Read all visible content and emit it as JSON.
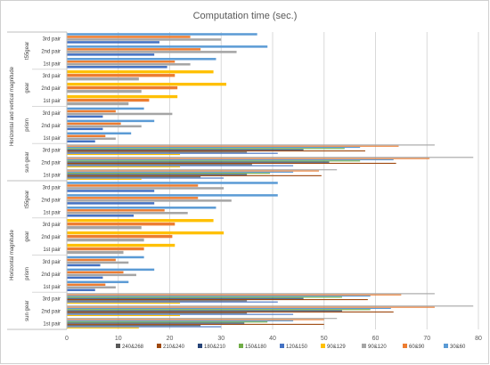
{
  "chart_data": {
    "type": "bar",
    "orientation": "horizontal",
    "title": "Computation time (sec.)",
    "xlabel": "",
    "ylabel": "",
    "xlim": [
      0,
      80
    ],
    "x_ticks": [
      "0",
      "10",
      "20",
      "30",
      "40",
      "50",
      "60",
      "70",
      "80"
    ],
    "grid": "vertical gridlines",
    "legend_position": "bottom",
    "groups": [
      {
        "name": "Horizontal and vertical magnitude",
        "subgroups": [
          {
            "name": "t55gear",
            "pairs": [
              {
                "label": "3rd pair",
                "values": [
                  {
                    "s": "30&60",
                    "v": 37.0
                  },
                  {
                    "s": "60&90",
                    "v": 24.0
                  },
                  {
                    "s": "90&120",
                    "v": 30.0
                  },
                  {
                    "s": "120&150",
                    "v": 18.0
                  }
                ]
              },
              {
                "label": "2nd pair",
                "values": [
                  {
                    "s": "30&60",
                    "v": 39.0
                  },
                  {
                    "s": "60&90",
                    "v": 26.0
                  },
                  {
                    "s": "90&120",
                    "v": 33.0
                  },
                  {
                    "s": "120&150",
                    "v": 17.0
                  }
                ]
              },
              {
                "label": "1st pair",
                "values": [
                  {
                    "s": "30&60",
                    "v": 29.0
                  },
                  {
                    "s": "60&90",
                    "v": 21.0
                  },
                  {
                    "s": "90&120",
                    "v": 24.0
                  },
                  {
                    "s": "120&150",
                    "v": 19.5
                  }
                ]
              }
            ]
          },
          {
            "name": "gear",
            "pairs": [
              {
                "label": "3rd pair",
                "values": [
                  {
                    "s": "90&129",
                    "v": 28.5
                  },
                  {
                    "s": "60&90",
                    "v": 21.0
                  },
                  {
                    "s": "90&120",
                    "v": 14.0
                  }
                ]
              },
              {
                "label": "2nd pair",
                "values": [
                  {
                    "s": "90&129",
                    "v": 31.0
                  },
                  {
                    "s": "60&90",
                    "v": 21.5
                  },
                  {
                    "s": "90&120",
                    "v": 14.5
                  }
                ]
              },
              {
                "label": "1st pair",
                "values": [
                  {
                    "s": "90&129",
                    "v": 21.5
                  },
                  {
                    "s": "60&90",
                    "v": 16.0
                  },
                  {
                    "s": "90&120",
                    "v": 12.0
                  }
                ]
              }
            ]
          },
          {
            "name": "prism",
            "pairs": [
              {
                "label": "3rd pair",
                "values": [
                  {
                    "s": "30&60",
                    "v": 15.0
                  },
                  {
                    "s": "60&90",
                    "v": 9.5
                  },
                  {
                    "s": "90&120",
                    "v": 20.5
                  },
                  {
                    "s": "120&150",
                    "v": 7.0
                  }
                ]
              },
              {
                "label": "2nd pair",
                "values": [
                  {
                    "s": "30&60",
                    "v": 17.0
                  },
                  {
                    "s": "60&90",
                    "v": 10.5
                  },
                  {
                    "s": "90&120",
                    "v": 14.5
                  },
                  {
                    "s": "120&150",
                    "v": 7.0
                  }
                ]
              },
              {
                "label": "1st pair",
                "values": [
                  {
                    "s": "30&60",
                    "v": 12.5
                  },
                  {
                    "s": "60&90",
                    "v": 7.5
                  },
                  {
                    "s": "90&120",
                    "v": 9.5
                  },
                  {
                    "s": "120&150",
                    "v": 5.5
                  }
                ]
              }
            ]
          },
          {
            "name": "sun gear",
            "pairs": [
              {
                "label": "3rd pair",
                "values": [
                  {
                    "s": "90&120",
                    "v": 71.5
                  },
                  {
                    "s": "60&90",
                    "v": 64.5
                  },
                  {
                    "s": "30&60",
                    "v": 57.0
                  },
                  {
                    "s": "150&180",
                    "v": 54.0
                  },
                  {
                    "s": "180&210",
                    "v": 46.0
                  },
                  {
                    "s": "210&240",
                    "v": 58.0
                  },
                  {
                    "s": "240&268",
                    "v": 35.0
                  },
                  {
                    "s": "120&150",
                    "v": 41.0
                  },
                  {
                    "s": "90&129",
                    "v": 22.0
                  }
                ]
              },
              {
                "label": "2nd pair",
                "values": [
                  {
                    "s": "90&120",
                    "v": 79.0
                  },
                  {
                    "s": "60&90",
                    "v": 70.5
                  },
                  {
                    "s": "30&60",
                    "v": 63.5
                  },
                  {
                    "s": "150&180",
                    "v": 57.0
                  },
                  {
                    "s": "180&210",
                    "v": 51.0
                  },
                  {
                    "s": "210&240",
                    "v": 64.0
                  },
                  {
                    "s": "240&268",
                    "v": 36.0
                  },
                  {
                    "s": "120&150",
                    "v": 44.0
                  },
                  {
                    "s": "90&129",
                    "v": 22.0
                  }
                ]
              },
              {
                "label": "1st pair",
                "values": [
                  {
                    "s": "90&120",
                    "v": 52.5
                  },
                  {
                    "s": "60&90",
                    "v": 49.0
                  },
                  {
                    "s": "30&60",
                    "v": 44.0
                  },
                  {
                    "s": "150&180",
                    "v": 39.5
                  },
                  {
                    "s": "180&210",
                    "v": 35.0
                  },
                  {
                    "s": "210&240",
                    "v": 49.5
                  },
                  {
                    "s": "240&268",
                    "v": 26.0
                  },
                  {
                    "s": "120&150",
                    "v": 30.5
                  },
                  {
                    "s": "90&129",
                    "v": 14.5
                  }
                ]
              }
            ]
          }
        ]
      },
      {
        "name": "Horizontal magnitude",
        "subgroups": [
          {
            "name": "t55gear",
            "pairs": [
              {
                "label": "3rd pair",
                "values": [
                  {
                    "s": "30&60",
                    "v": 41.0
                  },
                  {
                    "s": "60&90",
                    "v": 25.5
                  },
                  {
                    "s": "90&120",
                    "v": 30.5
                  },
                  {
                    "s": "120&150",
                    "v": 17.0
                  }
                ]
              },
              {
                "label": "2nd pair",
                "values": [
                  {
                    "s": "30&60",
                    "v": 41.0
                  },
                  {
                    "s": "60&90",
                    "v": 25.5
                  },
                  {
                    "s": "90&120",
                    "v": 32.0
                  },
                  {
                    "s": "120&150",
                    "v": 17.0
                  }
                ]
              },
              {
                "label": "1st pair",
                "values": [
                  {
                    "s": "30&60",
                    "v": 29.0
                  },
                  {
                    "s": "60&90",
                    "v": 19.0
                  },
                  {
                    "s": "90&120",
                    "v": 23.5
                  },
                  {
                    "s": "120&150",
                    "v": 13.0
                  }
                ]
              }
            ]
          },
          {
            "name": "gear",
            "pairs": [
              {
                "label": "3rd pair",
                "values": [
                  {
                    "s": "90&129",
                    "v": 28.5
                  },
                  {
                    "s": "60&90",
                    "v": 21.0
                  },
                  {
                    "s": "90&120",
                    "v": 14.5
                  }
                ]
              },
              {
                "label": "2nd pair",
                "values": [
                  {
                    "s": "90&129",
                    "v": 30.5
                  },
                  {
                    "s": "60&90",
                    "v": 20.5
                  },
                  {
                    "s": "90&120",
                    "v": 15.0
                  }
                ]
              },
              {
                "label": "1st pair",
                "values": [
                  {
                    "s": "90&129",
                    "v": 21.0
                  },
                  {
                    "s": "60&90",
                    "v": 15.0
                  },
                  {
                    "s": "90&120",
                    "v": 11.0
                  }
                ]
              }
            ]
          },
          {
            "name": "prism",
            "pairs": [
              {
                "label": "3rd pair",
                "values": [
                  {
                    "s": "30&60",
                    "v": 15.0
                  },
                  {
                    "s": "60&90",
                    "v": 9.5
                  },
                  {
                    "s": "90&120",
                    "v": 12.0
                  },
                  {
                    "s": "120&150",
                    "v": 6.5
                  }
                ]
              },
              {
                "label": "2nd pair",
                "values": [
                  {
                    "s": "30&60",
                    "v": 17.0
                  },
                  {
                    "s": "60&90",
                    "v": 11.0
                  },
                  {
                    "s": "90&120",
                    "v": 13.5
                  },
                  {
                    "s": "120&150",
                    "v": 7.0
                  }
                ]
              },
              {
                "label": "1st pair",
                "values": [
                  {
                    "s": "30&60",
                    "v": 12.0
                  },
                  {
                    "s": "60&90",
                    "v": 7.5
                  },
                  {
                    "s": "90&120",
                    "v": 9.5
                  },
                  {
                    "s": "120&150",
                    "v": 5.5
                  }
                ]
              }
            ]
          },
          {
            "name": "sun gear",
            "pairs": [
              {
                "label": "3rd pair",
                "values": [
                  {
                    "s": "90&120",
                    "v": 71.5
                  },
                  {
                    "s": "60&90",
                    "v": 65.0
                  },
                  {
                    "s": "30&60",
                    "v": 59.0
                  },
                  {
                    "s": "150&180",
                    "v": 53.5
                  },
                  {
                    "s": "180&210",
                    "v": 46.0
                  },
                  {
                    "s": "210&240",
                    "v": 58.5
                  },
                  {
                    "s": "240&268",
                    "v": 35.0
                  },
                  {
                    "s": "120&150",
                    "v": 41.0
                  },
                  {
                    "s": "90&129",
                    "v": 22.0
                  }
                ]
              },
              {
                "label": "2nd pair",
                "values": [
                  {
                    "s": "90&120",
                    "v": 79.0
                  },
                  {
                    "s": "60&90",
                    "v": 71.5
                  },
                  {
                    "s": "30&60",
                    "v": 63.0
                  },
                  {
                    "s": "150&180",
                    "v": 59.0
                  },
                  {
                    "s": "180&210",
                    "v": 53.5
                  },
                  {
                    "s": "210&240",
                    "v": 63.5
                  },
                  {
                    "s": "240&268",
                    "v": 35.0
                  },
                  {
                    "s": "120&150",
                    "v": 44.0
                  },
                  {
                    "s": "90&129",
                    "v": 22.0
                  }
                ]
              },
              {
                "label": "1st pair",
                "values": [
                  {
                    "s": "90&120",
                    "v": 52.5
                  },
                  {
                    "s": "60&90",
                    "v": 50.0
                  },
                  {
                    "s": "30&60",
                    "v": 44.0
                  },
                  {
                    "s": "150&180",
                    "v": 39.0
                  },
                  {
                    "s": "180&210",
                    "v": 34.5
                  },
                  {
                    "s": "210&240",
                    "v": 50.0
                  },
                  {
                    "s": "240&268",
                    "v": 26.0
                  },
                  {
                    "s": "120&150",
                    "v": 30.0
                  },
                  {
                    "s": "90&129",
                    "v": 14.0
                  }
                ]
              }
            ]
          }
        ]
      }
    ],
    "legend": [
      {
        "name": "240&268",
        "color": "#595959"
      },
      {
        "name": "210&240",
        "color": "#9e480e"
      },
      {
        "name": "180&210",
        "color": "#264478"
      },
      {
        "name": "150&180",
        "color": "#70ad47"
      },
      {
        "name": "120&150",
        "color": "#4472c4"
      },
      {
        "name": "90&129",
        "color": "#ffc000"
      },
      {
        "name": "90&120",
        "color": "#a5a5a5"
      },
      {
        "name": "60&90",
        "color": "#ed7d31"
      },
      {
        "name": "30&60",
        "color": "#5b9bd5"
      }
    ]
  }
}
